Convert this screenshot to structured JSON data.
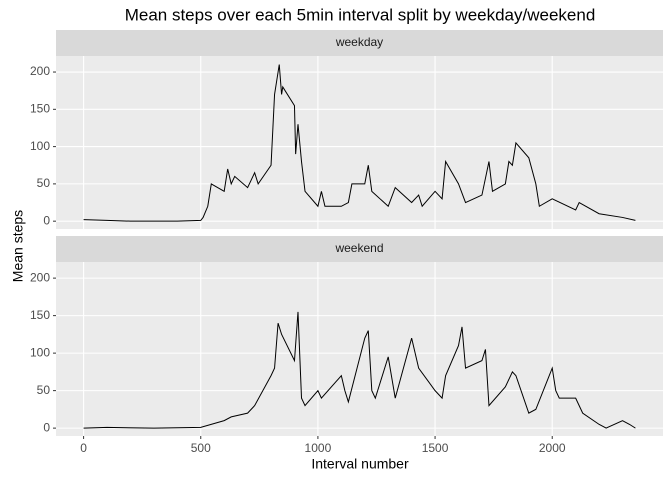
{
  "chart_data": {
    "type": "line",
    "title": "Mean steps over each 5min interval split by weekday/weekend",
    "xlabel": "Interval number",
    "ylabel": "Mean steps",
    "xlim": [
      -117.75,
      2472.75
    ],
    "xticks": [
      0,
      500,
      1000,
      1500,
      2000
    ],
    "ylim": [
      -10.5,
      221.5
    ],
    "yticks": [
      0,
      50,
      100,
      150,
      200
    ],
    "grid": true,
    "color": "#000000",
    "panels": [
      {
        "name": "weekday",
        "x": [
          0,
          100,
          200,
          300,
          400,
          500,
          510,
          530,
          545,
          600,
          615,
          630,
          645,
          700,
          715,
          730,
          745,
          800,
          815,
          830,
          835,
          845,
          850,
          900,
          905,
          915,
          930,
          945,
          1000,
          1015,
          1030,
          1100,
          1130,
          1145,
          1200,
          1215,
          1230,
          1300,
          1330,
          1400,
          1430,
          1445,
          1500,
          1530,
          1545,
          1600,
          1630,
          1700,
          1720,
          1730,
          1745,
          1800,
          1815,
          1830,
          1845,
          1900,
          1930,
          1945,
          2000,
          2100,
          2115,
          2200,
          2300,
          2355
        ],
        "values": [
          2,
          1,
          0,
          0,
          0,
          1,
          5,
          20,
          50,
          40,
          70,
          50,
          60,
          45,
          55,
          65,
          50,
          75,
          170,
          200,
          210,
          170,
          180,
          155,
          90,
          130,
          80,
          40,
          20,
          40,
          20,
          20,
          25,
          50,
          50,
          75,
          40,
          20,
          45,
          25,
          35,
          20,
          40,
          30,
          80,
          50,
          25,
          35,
          65,
          80,
          40,
          50,
          80,
          75,
          105,
          85,
          50,
          20,
          30,
          15,
          25,
          10,
          5,
          1
        ]
      },
      {
        "name": "weekend",
        "x": [
          0,
          100,
          300,
          500,
          600,
          630,
          700,
          730,
          800,
          815,
          830,
          845,
          900,
          915,
          930,
          945,
          1000,
          1015,
          1100,
          1115,
          1130,
          1200,
          1215,
          1230,
          1245,
          1300,
          1330,
          1400,
          1430,
          1500,
          1530,
          1545,
          1600,
          1615,
          1630,
          1700,
          1715,
          1730,
          1800,
          1830,
          1845,
          1900,
          1930,
          2000,
          2015,
          2030,
          2100,
          2130,
          2200,
          2230,
          2300,
          2330,
          2355
        ],
        "values": [
          0,
          1,
          0,
          1,
          10,
          15,
          20,
          30,
          70,
          80,
          140,
          125,
          90,
          155,
          40,
          30,
          50,
          40,
          70,
          50,
          35,
          120,
          130,
          50,
          40,
          95,
          40,
          120,
          80,
          50,
          40,
          70,
          110,
          135,
          80,
          90,
          105,
          30,
          55,
          75,
          70,
          20,
          25,
          80,
          50,
          40,
          40,
          20,
          5,
          0,
          10,
          5,
          0
        ]
      }
    ]
  }
}
